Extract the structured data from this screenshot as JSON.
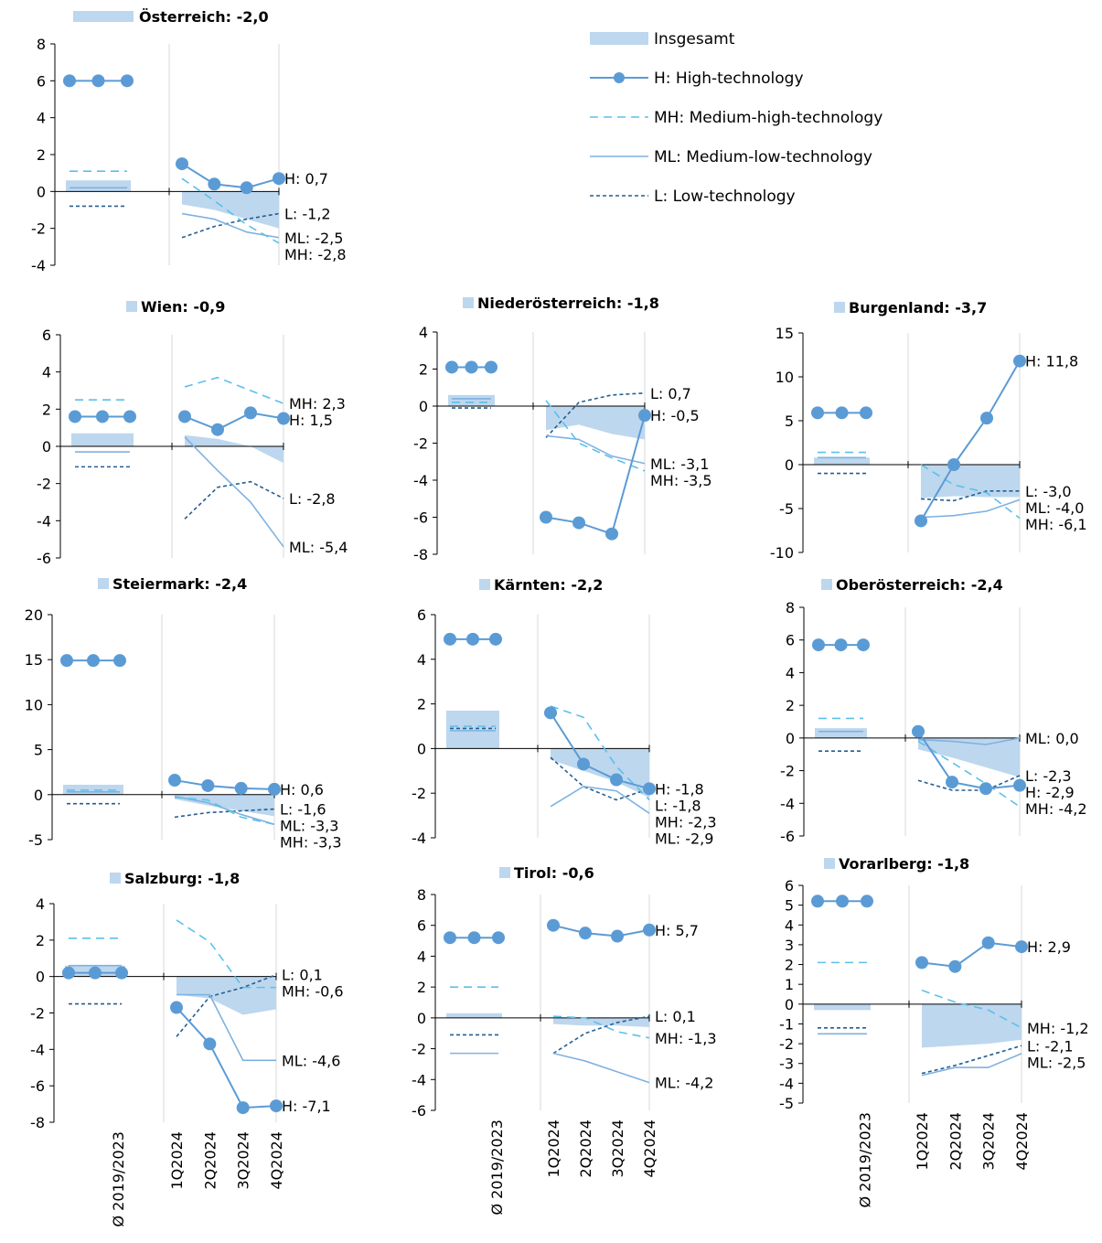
{
  "colors": {
    "total": "#bdd7ee",
    "H": "#5b9bd5",
    "MH": "#5bc0eb",
    "ML": "#7fb2e0",
    "L": "#255e91",
    "grid": "#d9d9d9",
    "axis": "#000000"
  },
  "legend": [
    {
      "key": "total",
      "label": "Insgesamt"
    },
    {
      "key": "H",
      "label": "H: High-technology"
    },
    {
      "key": "MH",
      "label": "MH: Medium-high-technology"
    },
    {
      "key": "ML",
      "label": "ML: Medium-low-technology"
    },
    {
      "key": "L",
      "label": "L: Low-technology"
    }
  ],
  "x_categories": [
    "Ø 2019/2023",
    "1Q2024",
    "2Q2024",
    "3Q2024",
    "4Q2024"
  ],
  "chart_data": [
    {
      "type": "line",
      "title": "Österreich: -2,0",
      "ylim": [
        -4,
        8
      ],
      "yticks": [
        -4,
        -2,
        0,
        2,
        4,
        6,
        8
      ],
      "total": [
        0.6,
        -0.7,
        -1.0,
        -1.5,
        -2.0
      ],
      "H": [
        6.0,
        1.5,
        0.4,
        0.2,
        0.7
      ],
      "MH": [
        1.1,
        0.7,
        -0.5,
        -1.8,
        -2.8
      ],
      "ML": [
        0.2,
        -1.2,
        -1.5,
        -2.2,
        -2.5
      ],
      "L": [
        -0.8,
        -2.5,
        -1.9,
        -1.5,
        -1.2
      ],
      "end_labels": [
        "H: 0,7",
        "L: -1,2",
        "ML: -2,5",
        "MH: -2,8"
      ]
    },
    {
      "type": "line",
      "title": "Wien: -0,9",
      "ylim": [
        -6,
        6
      ],
      "yticks": [
        -6,
        -4,
        -2,
        0,
        2,
        4,
        6
      ],
      "total": [
        0.7,
        0.6,
        0.4,
        0.0,
        -0.9
      ],
      "H": [
        1.6,
        1.6,
        0.9,
        1.8,
        1.5
      ],
      "MH": [
        2.5,
        3.2,
        3.7,
        3.0,
        2.3
      ],
      "ML": [
        -0.3,
        0.5,
        -1.3,
        -3.0,
        -5.4
      ],
      "L": [
        -1.1,
        -3.9,
        -2.2,
        -1.9,
        -2.8
      ],
      "end_labels": [
        "MH: 2,3",
        "H: 1,5",
        "L: -2,8",
        "ML: -5,4"
      ]
    },
    {
      "type": "line",
      "title": "Niederösterreich: -1,8",
      "ylim": [
        -8,
        4
      ],
      "yticks": [
        -8,
        -6,
        -4,
        -2,
        0,
        2,
        4
      ],
      "total": [
        0.6,
        -1.3,
        -1.0,
        -1.5,
        -1.8
      ],
      "H": [
        2.1,
        -6.0,
        -6.3,
        -6.9,
        -0.5
      ],
      "MH": [
        0.2,
        0.3,
        -2.0,
        -2.8,
        -3.5
      ],
      "ML": [
        0.4,
        -1.6,
        -1.8,
        -2.7,
        -3.1
      ],
      "L": [
        -0.1,
        -1.7,
        0.2,
        0.6,
        0.7
      ],
      "end_labels": [
        "L: 0,7",
        "H: -0,5",
        "ML: -3,1",
        "MH: -3,5"
      ]
    },
    {
      "type": "line",
      "title": "Burgenland: -3,7",
      "ylim": [
        -10,
        15
      ],
      "yticks": [
        -10,
        -5,
        0,
        5,
        10,
        15
      ],
      "total": [
        0.8,
        -3.8,
        -3.6,
        -3.7,
        -3.7
      ],
      "H": [
        5.9,
        -6.4,
        0.0,
        5.3,
        11.8
      ],
      "MH": [
        1.4,
        0.0,
        -2.3,
        -3.2,
        -6.1
      ],
      "ML": [
        0.8,
        -6.0,
        -5.8,
        -5.3,
        -4.0
      ],
      "L": [
        -1.0,
        -3.9,
        -4.1,
        -3.0,
        -3.0
      ],
      "end_labels": [
        "H: 11,8",
        "L: -3,0",
        "ML: -4,0",
        "MH: -6,1"
      ]
    },
    {
      "type": "line",
      "title": "Steiermark: -2,4",
      "ylim": [
        -5,
        20
      ],
      "yticks": [
        -5,
        0,
        5,
        10,
        15,
        20
      ],
      "total": [
        1.1,
        -0.5,
        -1.2,
        -1.8,
        -2.4
      ],
      "H": [
        14.9,
        1.6,
        1.0,
        0.7,
        0.6
      ],
      "MH": [
        0.5,
        -0.3,
        -0.6,
        -2.5,
        -3.3
      ],
      "ML": [
        0.3,
        -0.2,
        -0.9,
        -2.2,
        -3.3
      ],
      "L": [
        -1.0,
        -2.5,
        -2.0,
        -1.8,
        -1.6
      ],
      "end_labels": [
        "H: 0,6",
        "L: -1,6",
        "ML: -3,3",
        "MH: -3,3"
      ]
    },
    {
      "type": "line",
      "title": "Kärnten: -2,2",
      "ylim": [
        -4,
        6
      ],
      "yticks": [
        -4,
        -2,
        0,
        2,
        4,
        6
      ],
      "total": [
        1.7,
        -0.5,
        -1.0,
        -1.5,
        -2.2
      ],
      "H": [
        4.9,
        1.6,
        -0.7,
        -1.4,
        -1.8
      ],
      "MH": [
        1.0,
        1.9,
        1.4,
        -0.8,
        -2.3
      ],
      "ML": [
        0.8,
        -2.6,
        -1.7,
        -1.9,
        -2.9
      ],
      "L": [
        0.9,
        -0.4,
        -1.7,
        -2.3,
        -1.8
      ],
      "end_labels": [
        "H: -1,8",
        "L: -1,8",
        "MH: -2,3",
        "ML: -2,9"
      ]
    },
    {
      "type": "line",
      "title": "Oberösterreich: -2,4",
      "ylim": [
        -6,
        8
      ],
      "yticks": [
        -6,
        -4,
        -2,
        0,
        2,
        4,
        6,
        8
      ],
      "total": [
        0.6,
        -0.7,
        -1.2,
        -1.8,
        -2.4
      ],
      "H": [
        5.7,
        0.4,
        -2.7,
        -3.1,
        -2.9
      ],
      "MH": [
        1.2,
        -0.2,
        -1.5,
        -2.8,
        -4.2
      ],
      "ML": [
        0.4,
        -0.1,
        -0.2,
        -0.4,
        0.0
      ],
      "L": [
        -0.8,
        -2.6,
        -3.2,
        -3.2,
        -2.3
      ],
      "end_labels": [
        "ML: 0,0",
        "L: -2,3",
        "H: -2,9",
        "MH: -4,2"
      ]
    },
    {
      "type": "line",
      "title": "Salzburg: -1,8",
      "ylim": [
        -8,
        4
      ],
      "yticks": [
        -8,
        -6,
        -4,
        -2,
        0,
        2,
        4
      ],
      "total": [
        0.6,
        -1.0,
        -1.2,
        -2.1,
        -1.8
      ],
      "H": [
        0.2,
        -1.7,
        -3.7,
        -7.2,
        -7.1
      ],
      "MH": [
        2.1,
        3.1,
        1.9,
        -0.6,
        -0.6
      ],
      "ML": [
        0.6,
        -1.0,
        -1.0,
        -4.6,
        -4.6
      ],
      "L": [
        -1.5,
        -3.3,
        -1.1,
        -0.6,
        0.1
      ],
      "end_labels": [
        "L: 0,1",
        "MH: -0,6",
        "ML: -4,6",
        "H: -7,1"
      ]
    },
    {
      "type": "line",
      "title": "Tirol: -0,6",
      "ylim": [
        -6,
        8
      ],
      "yticks": [
        -6,
        -4,
        -2,
        0,
        2,
        4,
        6,
        8
      ],
      "total": [
        0.3,
        -0.4,
        -0.5,
        -0.5,
        -0.6
      ],
      "H": [
        5.2,
        6.0,
        5.5,
        5.3,
        5.7
      ],
      "MH": [
        2.0,
        0.1,
        0.0,
        -0.9,
        -1.3
      ],
      "ML": [
        -2.3,
        -2.3,
        -2.8,
        -3.5,
        -4.2
      ],
      "L": [
        -1.1,
        -2.3,
        -1.0,
        -0.3,
        0.1
      ],
      "end_labels": [
        "H: 5,7",
        "L: 0,1",
        "MH: -1,3",
        "ML: -4,2"
      ]
    },
    {
      "type": "line",
      "title": "Vorarlberg: -1,8",
      "ylim": [
        -5,
        6
      ],
      "yticks": [
        -5,
        -4,
        -3,
        -2,
        -1,
        0,
        1,
        2,
        3,
        4,
        5,
        6
      ],
      "total": [
        -0.3,
        -2.2,
        -2.1,
        -2.0,
        -1.8
      ],
      "H": [
        5.2,
        2.1,
        1.9,
        3.1,
        2.9
      ],
      "MH": [
        2.1,
        0.7,
        0.1,
        -0.3,
        -1.2
      ],
      "ML": [
        -1.5,
        -3.6,
        -3.2,
        -3.2,
        -2.5
      ],
      "L": [
        -1.2,
        -3.5,
        -3.1,
        -2.6,
        -2.1
      ],
      "end_labels": [
        "H: 2,9",
        "MH: -1,2",
        "L: -2,1",
        "ML: -2,5"
      ]
    }
  ]
}
